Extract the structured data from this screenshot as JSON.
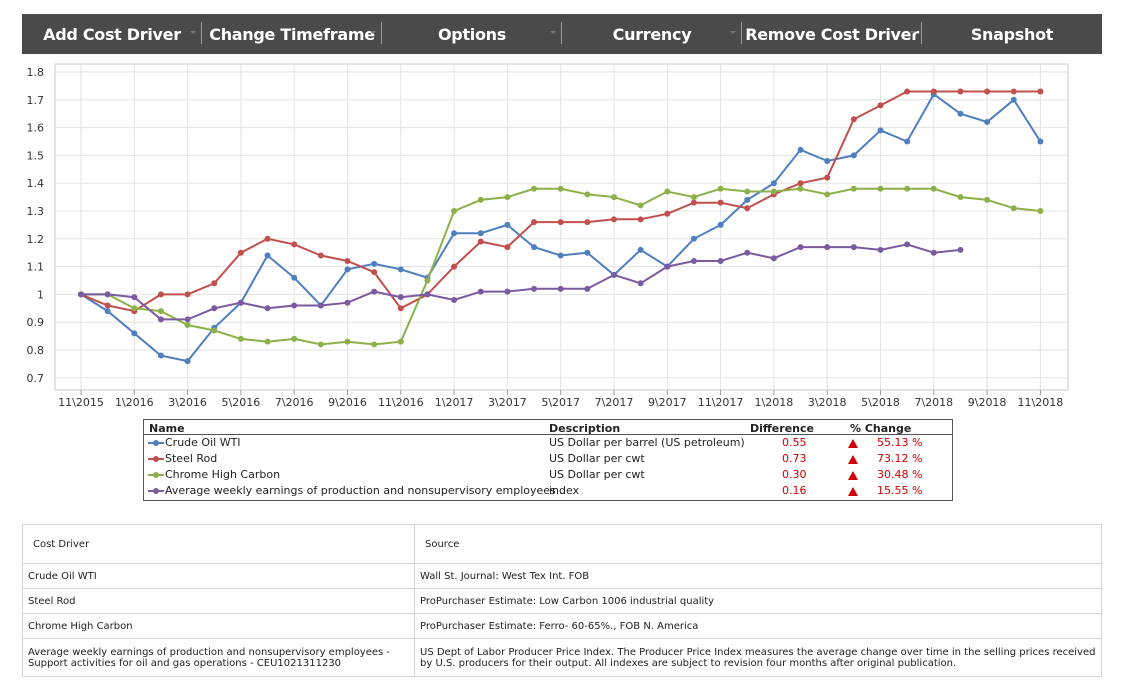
{
  "toolbar": {
    "buttons": [
      "Add Cost Driver",
      "Change Timeframe",
      "Options",
      "Currency",
      "Remove Cost Driver",
      "Snapshot"
    ]
  },
  "chart_data": {
    "type": "line",
    "ylim": [
      0.65,
      1.82
    ],
    "yticks": [
      "1.8",
      "1.7",
      "1.6",
      "1.5",
      "1.4",
      "1.3",
      "1.2",
      "1.1",
      "1",
      "0.9",
      "0.8",
      "0.7"
    ],
    "xtick_labels": [
      "11\\2015",
      "1\\2016",
      "3\\2016",
      "5\\2016",
      "7\\2016",
      "9\\2016",
      "11\\2016",
      "1\\2017",
      "3\\2017",
      "5\\2017",
      "7\\2017",
      "9\\2017",
      "11\\2017",
      "1\\2018",
      "3\\2018",
      "5\\2018",
      "7\\2018",
      "9\\2018",
      "11\\2018"
    ],
    "x": [
      "2015-11",
      "2015-12",
      "2016-01",
      "2016-02",
      "2016-03",
      "2016-04",
      "2016-05",
      "2016-06",
      "2016-07",
      "2016-08",
      "2016-09",
      "2016-10",
      "2016-11",
      "2016-12",
      "2017-01",
      "2017-02",
      "2017-03",
      "2017-04",
      "2017-05",
      "2017-06",
      "2017-07",
      "2017-08",
      "2017-09",
      "2017-10",
      "2017-11",
      "2017-12",
      "2018-01",
      "2018-02",
      "2018-03",
      "2018-04",
      "2018-05",
      "2018-06",
      "2018-07",
      "2018-08",
      "2018-09",
      "2018-10",
      "2018-11"
    ],
    "grid": true,
    "series": [
      {
        "name": "Crude Oil WTI",
        "color": "#4f7fbf",
        "values": [
          1.0,
          0.94,
          0.86,
          0.78,
          0.76,
          0.88,
          0.97,
          1.14,
          1.06,
          0.96,
          1.09,
          1.11,
          1.09,
          1.06,
          1.22,
          1.22,
          1.25,
          1.17,
          1.14,
          1.15,
          1.07,
          1.16,
          1.1,
          1.2,
          1.25,
          1.34,
          1.4,
          1.52,
          1.48,
          1.5,
          1.59,
          1.55,
          1.72,
          1.65,
          1.62,
          1.7,
          1.55
        ]
      },
      {
        "name": "Steel Rod",
        "color": "#c0504d",
        "values": [
          1.0,
          0.96,
          0.94,
          1.0,
          1.0,
          1.04,
          1.15,
          1.2,
          1.18,
          1.14,
          1.12,
          1.08,
          0.95,
          1.0,
          1.1,
          1.19,
          1.17,
          1.26,
          1.26,
          1.26,
          1.27,
          1.27,
          1.29,
          1.33,
          1.33,
          1.31,
          1.36,
          1.4,
          1.42,
          1.63,
          1.68,
          1.73,
          1.73,
          1.73,
          1.73,
          1.73,
          1.73
        ]
      },
      {
        "name": "Chrome High Carbon",
        "color": "#8db14a",
        "values": [
          1.0,
          1.0,
          0.95,
          0.94,
          0.89,
          0.87,
          0.84,
          0.83,
          0.84,
          0.82,
          0.83,
          0.82,
          0.83,
          1.05,
          1.3,
          1.34,
          1.35,
          1.38,
          1.38,
          1.36,
          1.35,
          1.32,
          1.37,
          1.35,
          1.38,
          1.37,
          1.37,
          1.38,
          1.36,
          1.38,
          1.38,
          1.38,
          1.38,
          1.35,
          1.34,
          1.31,
          1.3
        ]
      },
      {
        "name": "Average weekly earnings of production and nonsupervisory employees...",
        "color": "#7a5aa0",
        "values": [
          1.0,
          1.0,
          0.99,
          0.91,
          0.91,
          0.95,
          0.97,
          0.95,
          0.96,
          0.96,
          0.97,
          1.01,
          0.99,
          1.0,
          0.98,
          1.01,
          1.01,
          1.02,
          1.02,
          1.02,
          1.07,
          1.04,
          1.1,
          1.12,
          1.12,
          1.15,
          1.13,
          1.17,
          1.17,
          1.17,
          1.16,
          1.18,
          1.15,
          1.16,
          null,
          null,
          null
        ]
      }
    ]
  },
  "legend": {
    "headers": {
      "name": "Name",
      "description": "Description",
      "difference": "Difference",
      "pct_change": "% Change"
    },
    "rows": [
      {
        "name": "Crude Oil WTI",
        "description": "US Dollar per barrel (US petroleum)",
        "difference": "0.55",
        "pct": "55.13 %",
        "color": "#4f7fbf"
      },
      {
        "name": "Steel Rod",
        "description": "US Dollar per cwt",
        "difference": "0.73",
        "pct": "73.12 %",
        "color": "#c0504d"
      },
      {
        "name": "Chrome High Carbon",
        "description": "US Dollar per cwt",
        "difference": "0.30",
        "pct": "30.48 %",
        "color": "#8db14a"
      },
      {
        "name": "Average weekly earnings of production and nonsupervisory employees...",
        "description": "index",
        "difference": "0.16",
        "pct": "15.55 %",
        "color": "#7a5aa0"
      }
    ]
  },
  "sources": {
    "headers": {
      "driver": "Cost Driver",
      "source": "Source"
    },
    "rows": [
      {
        "driver": "Crude Oil WTI",
        "source": "Wall St. Journal: West Tex Int. FOB"
      },
      {
        "driver": "Steel Rod",
        "source": "ProPurchaser Estimate: Low Carbon 1006 industrial quality"
      },
      {
        "driver": "Chrome High Carbon",
        "source": "ProPurchaser Estimate: Ferro- 60-65%., FOB N. America"
      },
      {
        "driver": "Average weekly earnings of production and nonsupervisory employees -Support activities for oil and gas operations - CEU1021311230",
        "source": "US Dept of Labor Producer Price Index. The Producer Price Index measures the average change over time in the selling prices received by U.S. producers for their output. All indexes are subject to revision four months after original publication."
      }
    ]
  }
}
